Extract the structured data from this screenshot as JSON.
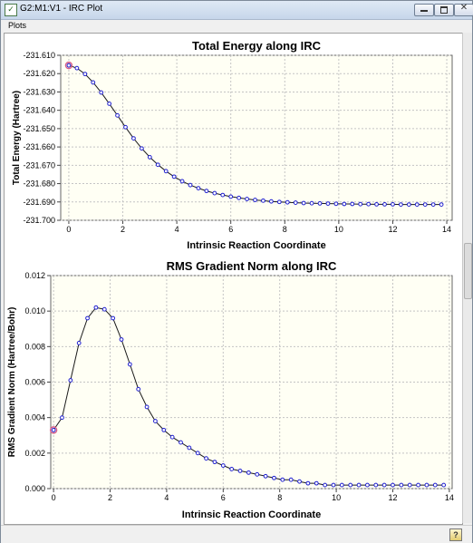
{
  "window": {
    "title": "G2:M1:V1 - IRC Plot",
    "app_icon_glyph": "✓",
    "minimize_icon": "minimize-icon",
    "maximize_icon": "maximize-icon",
    "close_glyph": "✕"
  },
  "menu": {
    "plots_label": "Plots"
  },
  "status": {
    "help_glyph": "?"
  },
  "colors": {
    "plot_background": "#fffff4",
    "grid": "#c4c4c4",
    "line": "#1a1a1a",
    "marker": "#1f1fd0",
    "highlight": "#d8608a"
  },
  "chart_data": [
    {
      "type": "line",
      "title": "Total Energy along IRC",
      "xlabel": "Intrinsic Reaction Coordinate",
      "ylabel": "Total Energy (Hartree)",
      "xlim": [
        -0.3,
        14.2
      ],
      "ylim": [
        -231.7,
        -231.61
      ],
      "xticks": [
        "0",
        "2",
        "4",
        "6",
        "8",
        "10",
        "12",
        "14"
      ],
      "xtick_values": [
        0,
        2,
        4,
        6,
        8,
        10,
        12,
        14
      ],
      "yticks": [
        "-231.610",
        "-231.620",
        "-231.630",
        "-231.640",
        "-231.650",
        "-231.660",
        "-231.670",
        "-231.680",
        "-231.690",
        "-231.700"
      ],
      "ytick_values": [
        -231.61,
        -231.62,
        -231.63,
        -231.64,
        -231.65,
        -231.66,
        -231.67,
        -231.68,
        -231.69,
        -231.7
      ],
      "grid": true,
      "highlighted_point": [
        0,
        -231.6155
      ],
      "x": [
        0,
        0.3,
        0.6,
        0.9,
        1.2,
        1.5,
        1.8,
        2.1,
        2.4,
        2.7,
        3.0,
        3.3,
        3.6,
        3.9,
        4.2,
        4.5,
        4.8,
        5.1,
        5.4,
        5.7,
        6.0,
        6.3,
        6.6,
        6.9,
        7.2,
        7.5,
        7.8,
        8.1,
        8.4,
        8.7,
        9.0,
        9.3,
        9.6,
        9.9,
        10.2,
        10.5,
        10.8,
        11.1,
        11.4,
        11.7,
        12.0,
        12.3,
        12.6,
        12.9,
        13.2,
        13.5,
        13.8
      ],
      "y": [
        -231.6155,
        -231.617,
        -231.6202,
        -231.6248,
        -231.6303,
        -231.6364,
        -231.6428,
        -231.6492,
        -231.6553,
        -231.6608,
        -231.6656,
        -231.6697,
        -231.6732,
        -231.6762,
        -231.6787,
        -231.6808,
        -231.6825,
        -231.684,
        -231.6852,
        -231.6862,
        -231.6871,
        -231.6878,
        -231.6884,
        -231.6889,
        -231.6893,
        -231.6897,
        -231.69,
        -231.6902,
        -231.6904,
        -231.6906,
        -231.6907,
        -231.6908,
        -231.6909,
        -231.691,
        -231.6911,
        -231.6911,
        -231.6912,
        -231.6912,
        -231.6913,
        -231.6913,
        -231.6913,
        -231.6914,
        -231.6914,
        -231.6914,
        -231.6914,
        -231.6914,
        -231.6914
      ]
    },
    {
      "type": "line",
      "title": "RMS Gradient Norm along IRC",
      "xlabel": "Intrinsic Reaction Coordinate",
      "ylabel": "RMS Gradient Norm (Hartree/Bohr)",
      "xlim": [
        -0.1,
        14.1
      ],
      "ylim": [
        0.0,
        0.012
      ],
      "xticks": [
        "0",
        "2",
        "4",
        "6",
        "8",
        "10",
        "12",
        "14"
      ],
      "xtick_values": [
        0,
        2,
        4,
        6,
        8,
        10,
        12,
        14
      ],
      "yticks": [
        "0.012",
        "0.010",
        "0.008",
        "0.006",
        "0.004",
        "0.002",
        "0.000"
      ],
      "ytick_values": [
        0.012,
        0.01,
        0.008,
        0.006,
        0.004,
        0.002,
        0.0
      ],
      "grid": true,
      "highlighted_point": [
        0,
        0.0033
      ],
      "x": [
        0,
        0.3,
        0.6,
        0.9,
        1.2,
        1.5,
        1.8,
        2.1,
        2.4,
        2.7,
        3.0,
        3.3,
        3.6,
        3.9,
        4.2,
        4.5,
        4.8,
        5.1,
        5.4,
        5.7,
        6.0,
        6.3,
        6.6,
        6.9,
        7.2,
        7.5,
        7.8,
        8.1,
        8.4,
        8.7,
        9.0,
        9.3,
        9.6,
        9.9,
        10.2,
        10.5,
        10.8,
        11.1,
        11.4,
        11.7,
        12.0,
        12.3,
        12.6,
        12.9,
        13.2,
        13.5,
        13.8
      ],
      "y": [
        0.0033,
        0.004,
        0.0061,
        0.0082,
        0.0096,
        0.0102,
        0.0101,
        0.0096,
        0.0084,
        0.007,
        0.0056,
        0.0046,
        0.0038,
        0.0033,
        0.0029,
        0.0026,
        0.0023,
        0.002,
        0.0017,
        0.0015,
        0.0013,
        0.0011,
        0.001,
        0.0009,
        0.0008,
        0.0007,
        0.0006,
        0.0005,
        0.0005,
        0.0004,
        0.0003,
        0.0003,
        0.0002,
        0.0002,
        0.0002,
        0.0002,
        0.0002,
        0.0002,
        0.0002,
        0.0002,
        0.0002,
        0.0002,
        0.0002,
        0.0002,
        0.0002,
        0.0002,
        0.0002
      ]
    }
  ]
}
